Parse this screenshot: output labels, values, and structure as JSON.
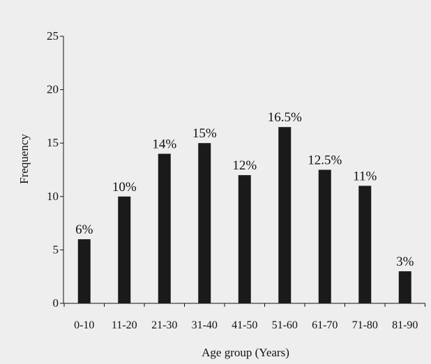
{
  "chart_data": {
    "type": "bar",
    "categories": [
      "0-10",
      "11-20",
      "21-30",
      "31-40",
      "41-50",
      "51-60",
      "61-70",
      "71-80",
      "81-90"
    ],
    "values": [
      6,
      10,
      14,
      15,
      12,
      16.5,
      12.5,
      11,
      3
    ],
    "data_labels": [
      "6%",
      "10%",
      "14%",
      "15%",
      "12%",
      "16.5%",
      "12.5%",
      "11%",
      "3%"
    ],
    "xlabel": "Age group (Years)",
    "ylabel": "Frequency",
    "ylim": [
      0,
      25
    ],
    "yticks": [
      0,
      5,
      10,
      15,
      20,
      25
    ],
    "grid": false,
    "legend": "none",
    "bar_color": "#1a1a1a",
    "background_color": "#eeeeee"
  }
}
